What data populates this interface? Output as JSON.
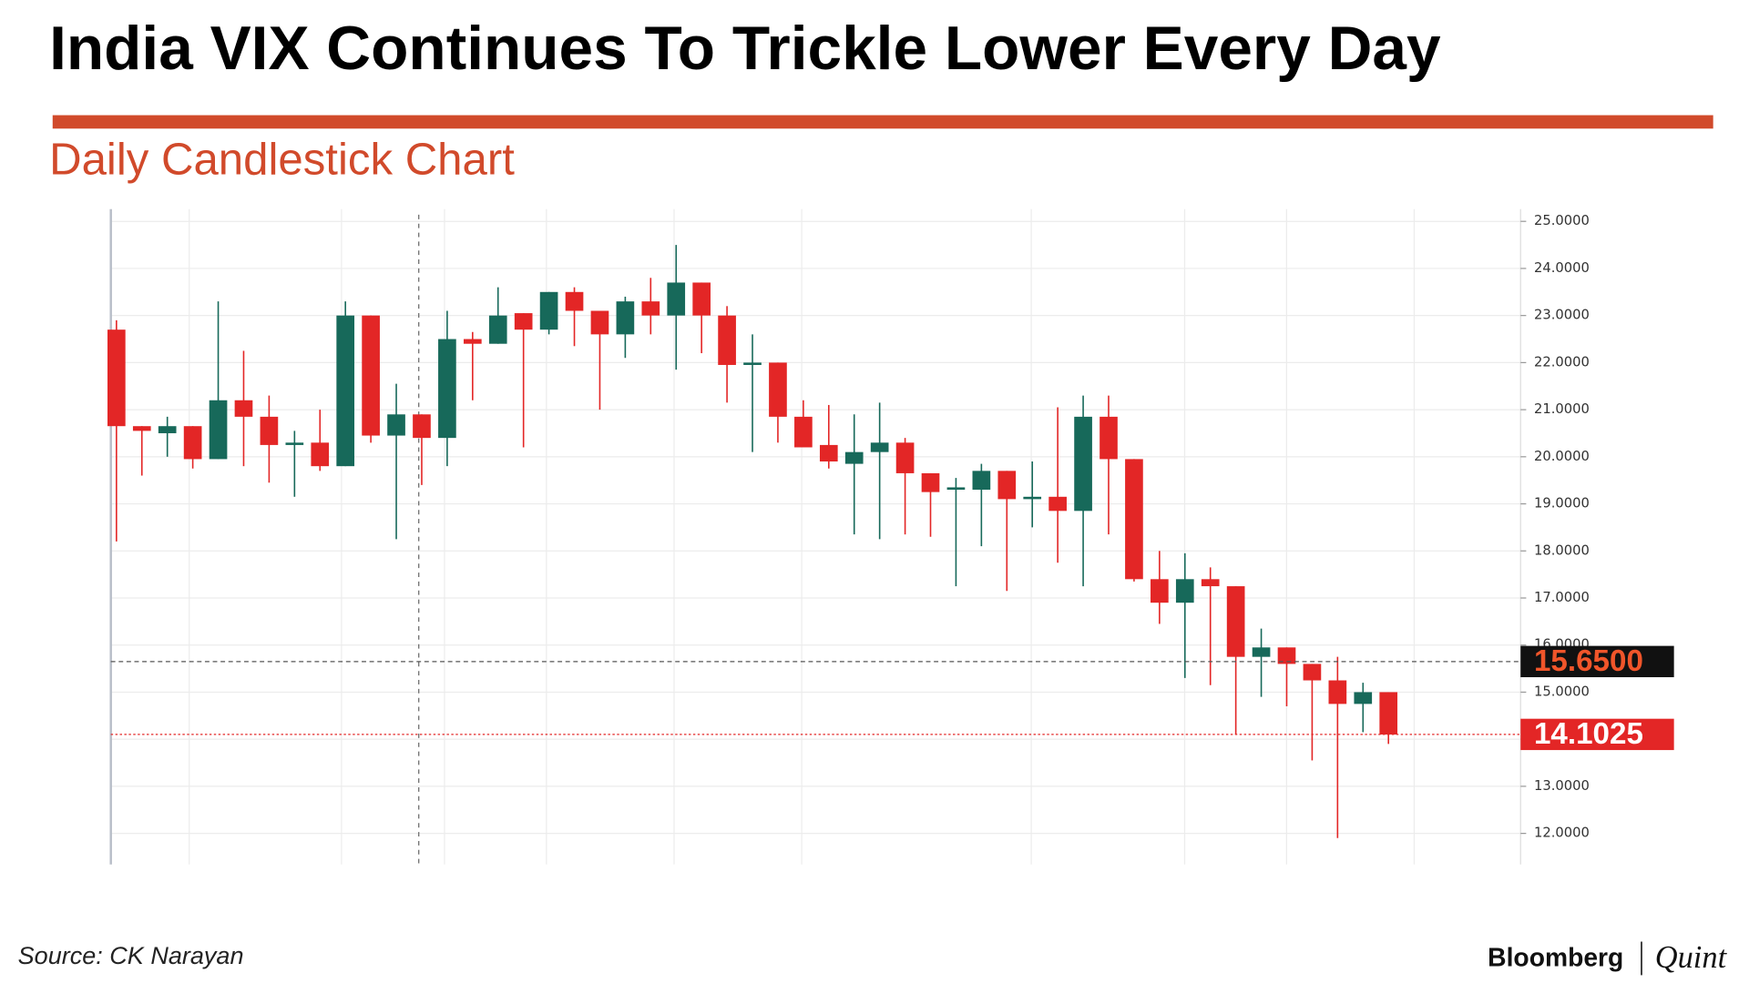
{
  "chart_data": {
    "type": "candlestick",
    "title": "India VIX Continues To Trickle Lower Every Day",
    "subtitle": "Daily Candlestick Chart",
    "source": "Source: CK Narayan",
    "brand": [
      "Bloomberg",
      "Quint"
    ],
    "up_color": "#17695a",
    "down_color": "#e32626",
    "open": [
      22.7,
      20.65,
      20.5,
      20.65,
      19.95,
      21.2,
      20.85,
      20.25,
      20.3,
      19.8,
      23.0,
      20.45,
      20.9,
      20.4,
      22.5,
      22.4,
      23.05,
      22.7,
      23.5,
      23.1,
      22.6,
      23.3,
      23.0,
      23.7,
      23.0,
      21.95,
      22.0,
      20.85,
      20.25,
      19.85,
      20.1,
      20.3,
      19.65,
      19.3,
      19.3,
      19.7,
      19.1,
      19.15,
      18.85,
      20.85,
      19.95,
      17.4,
      16.9,
      17.4,
      17.25,
      15.75,
      15.95,
      15.6,
      15.25,
      14.75,
      15.0
    ],
    "high": [
      22.9,
      20.65,
      20.85,
      20.65,
      23.3,
      22.25,
      21.3,
      20.55,
      21.0,
      23.3,
      23.0,
      21.55,
      20.9,
      23.1,
      22.65,
      23.6,
      23.05,
      23.5,
      23.6,
      23.1,
      23.4,
      23.8,
      24.5,
      23.7,
      23.2,
      22.6,
      22.0,
      21.2,
      21.1,
      20.9,
      21.15,
      20.4,
      19.65,
      19.55,
      19.85,
      19.7,
      19.9,
      21.05,
      21.3,
      21.3,
      19.95,
      18.0,
      17.95,
      17.65,
      17.25,
      16.35,
      15.95,
      15.6,
      15.75,
      15.2,
      15.0
    ],
    "low": [
      18.2,
      19.6,
      20.0,
      19.75,
      19.95,
      19.8,
      19.45,
      19.15,
      19.7,
      19.8,
      20.3,
      18.25,
      19.4,
      19.8,
      21.2,
      22.4,
      20.2,
      22.6,
      22.35,
      21.0,
      22.1,
      22.6,
      21.85,
      22.2,
      21.15,
      20.1,
      20.3,
      20.2,
      19.75,
      18.35,
      18.25,
      18.35,
      18.3,
      17.25,
      18.1,
      17.15,
      18.5,
      17.75,
      17.25,
      18.35,
      17.35,
      16.45,
      15.3,
      15.15,
      14.1,
      14.9,
      14.7,
      13.55,
      11.9,
      14.15,
      13.9
    ],
    "close": [
      20.65,
      20.55,
      20.65,
      19.95,
      21.2,
      20.85,
      20.25,
      20.3,
      19.8,
      23.0,
      20.45,
      20.9,
      20.4,
      22.5,
      22.4,
      23.0,
      22.7,
      23.5,
      23.1,
      22.6,
      23.3,
      23.0,
      23.7,
      23.0,
      21.95,
      22.0,
      20.85,
      20.2,
      19.9,
      20.1,
      20.3,
      19.65,
      19.25,
      19.35,
      19.7,
      19.1,
      19.15,
      18.85,
      20.85,
      19.95,
      17.4,
      16.9,
      17.4,
      17.25,
      15.75,
      15.95,
      15.6,
      15.25,
      14.75,
      15.0,
      14.1
    ],
    "ylim": [
      11.34,
      25.26
    ],
    "yticks": [
      {
        "value": 12,
        "label": "12.0000"
      },
      {
        "value": 13,
        "label": "13.0000"
      },
      {
        "value": 14,
        "label": "14.0000"
      },
      {
        "value": 15,
        "label": "15.0000"
      },
      {
        "value": 16,
        "label": "16.0000"
      },
      {
        "value": 17,
        "label": "17.0000"
      },
      {
        "value": 18,
        "label": "18.0000"
      },
      {
        "value": 19,
        "label": "19.0000"
      },
      {
        "value": 20,
        "label": "20.0000"
      },
      {
        "value": 21,
        "label": "21.0000"
      },
      {
        "value": 22,
        "label": "22.0000"
      },
      {
        "value": 23,
        "label": "23.0000"
      },
      {
        "value": 24,
        "label": "24.0000"
      },
      {
        "value": 25,
        "label": "25.0000"
      }
    ],
    "price_lines": [
      {
        "value": 15.65,
        "label": "15.6500",
        "color": "#555555",
        "box": "#111111",
        "text_color": "#f0552a"
      },
      {
        "value": 14.1025,
        "label": "14.1025",
        "color": "#e32626",
        "box": "#e32626",
        "text_color": "#ffffff"
      }
    ],
    "grid": true
  }
}
